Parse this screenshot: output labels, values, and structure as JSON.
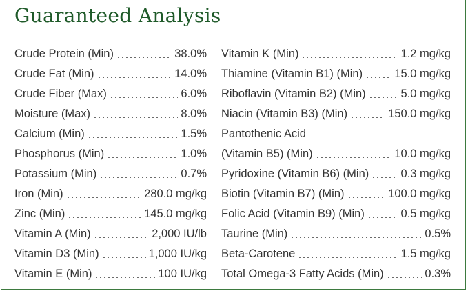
{
  "header": {
    "title": "Guaranteed Analysis"
  },
  "columns": [
    [
      {
        "label": "Crude Protein (Min)",
        "value": "38.0%"
      },
      {
        "label": "Crude Fat (Min)",
        "value": "14.0%"
      },
      {
        "label": "Crude Fiber (Max)",
        "value": "6.0%"
      },
      {
        "label": "Moisture (Max)",
        "value": "8.0%"
      },
      {
        "label": "Calcium (Min)",
        "value": "1.5%"
      },
      {
        "label": "Phosphorus (Min)",
        "value": "1.0%"
      },
      {
        "label": "Potassium (Min)",
        "value": "0.7%"
      },
      {
        "label": "Iron (Min)",
        "value": "280.0 mg/kg"
      },
      {
        "label": "Zinc (Min)",
        "value": "145.0 mg/kg"
      },
      {
        "label": "Vitamin A (Min)",
        "value": "2,000 IU/lb"
      },
      {
        "label": "Vitamin D3 (Min)",
        "value": "1,000 IU/kg"
      },
      {
        "label": "Vitamin E (Min)",
        "value": "100 IU/kg"
      }
    ],
    [
      {
        "label": "Vitamin K (Min)",
        "value": "1.2 mg/kg"
      },
      {
        "label": "Thiamine (Vitamin B1) (Min)",
        "value": "15.0 mg/kg"
      },
      {
        "label": "Riboflavin (Vitamin B2) (Min)",
        "value": "5.0 mg/kg"
      },
      {
        "label": "Niacin (Vitamin B3) (Min)",
        "value": "150.0 mg/kg"
      },
      {
        "label": "Pantothenic Acid"
      },
      {
        "label": "(Vitamin B5) (Min)",
        "value": "10.0 mg/kg"
      },
      {
        "label": "Pyridoxine (Vitamin B6) (Min)",
        "value": "0.3 mg/kg"
      },
      {
        "label": "Biotin (Vitamin B7) (Min)",
        "value": "100.0 mg/kg"
      },
      {
        "label": "Folic Acid (Vitamin B9) (Min)",
        "value": "0.5 mg/kg"
      },
      {
        "label": "Taurine (Min)",
        "value": "0.5%"
      },
      {
        "label": "Beta-Carotene",
        "value": "1.5 mg/kg"
      },
      {
        "label": "Total Omega-3 Fatty Acids (Min)",
        "value": "0.3%"
      }
    ]
  ]
}
